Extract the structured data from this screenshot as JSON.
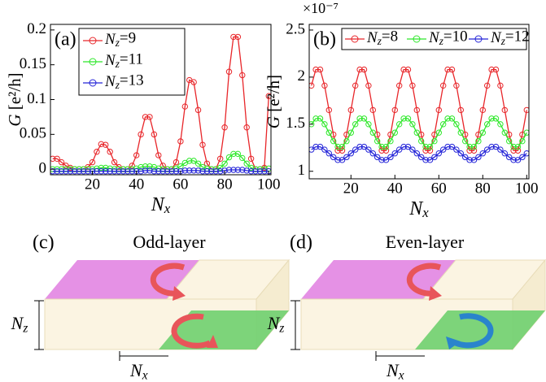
{
  "chart_data": [
    {
      "type": "line",
      "panel": "(a)",
      "y_label": "G [e²/h]",
      "x_label": "Nx",
      "legend": "upper left",
      "x": [
        2,
        4,
        6,
        8,
        10,
        12,
        14,
        16,
        18,
        20,
        22,
        24,
        26,
        28,
        30,
        32,
        34,
        36,
        38,
        40,
        42,
        44,
        46,
        48,
        50,
        52,
        54,
        56,
        58,
        60,
        62,
        64,
        66,
        68,
        70,
        72,
        74,
        76,
        78,
        80,
        82,
        84,
        86,
        88,
        90,
        92,
        94,
        96,
        98,
        100
      ],
      "series": [
        {
          "name": "Nz=9",
          "color": "#e8262a",
          "values": [
            0.015,
            0.015,
            0.01,
            0.005,
            0.002,
            0,
            0,
            0,
            0.003,
            0.01,
            0.025,
            0.036,
            0.035,
            0.025,
            0.01,
            0.003,
            0,
            0,
            0.005,
            0.02,
            0.05,
            0.075,
            0.075,
            0.05,
            0.02,
            0.005,
            0,
            0,
            0.01,
            0.04,
            0.09,
            0.128,
            0.125,
            0.085,
            0.035,
            0.008,
            0,
            0,
            0.015,
            0.06,
            0.14,
            0.19,
            0.19,
            0.135,
            0.06,
            0.015,
            0,
            0,
            0.002,
            0.105
          ]
        },
        {
          "name": "Nz=11",
          "color": "#2ee82a",
          "values": [
            0,
            0,
            0,
            0,
            0,
            0,
            0,
            0,
            0,
            0,
            0.001,
            0.002,
            0.002,
            0.001,
            0,
            0,
            0,
            0,
            0,
            0.001,
            0.003,
            0.004,
            0.004,
            0.003,
            0.001,
            0,
            0,
            0,
            0.001,
            0.004,
            0.009,
            0.012,
            0.012,
            0.008,
            0.003,
            0.001,
            0,
            0,
            0.002,
            0.008,
            0.017,
            0.022,
            0.022,
            0.016,
            0.008,
            0.002,
            0,
            0,
            0,
            0.001
          ]
        },
        {
          "name": "Nz=13",
          "color": "#2424d8",
          "values": [
            -0.003,
            -0.003,
            -0.003,
            -0.003,
            -0.003,
            -0.003,
            -0.003,
            -0.003,
            -0.003,
            -0.003,
            -0.003,
            -0.003,
            -0.003,
            -0.003,
            -0.003,
            -0.003,
            -0.003,
            -0.003,
            -0.003,
            -0.003,
            -0.003,
            -0.002,
            -0.002,
            -0.003,
            -0.003,
            -0.003,
            -0.003,
            -0.003,
            -0.003,
            -0.003,
            -0.002,
            -0.002,
            -0.002,
            -0.002,
            -0.003,
            -0.003,
            -0.003,
            -0.003,
            -0.003,
            -0.002,
            -0.001,
            -0.001,
            -0.001,
            -0.001,
            -0.002,
            -0.003,
            -0.003,
            -0.003,
            -0.003,
            -0.003
          ]
        }
      ],
      "xlim": [
        1,
        101
      ],
      "ylim": [
        -0.008,
        0.208
      ],
      "xticks": [
        20,
        40,
        60,
        80,
        100
      ],
      "yticks": [
        0,
        0.05,
        0.1,
        0.15,
        0.2
      ],
      "grid": false
    },
    {
      "type": "line",
      "panel": "(b)",
      "y_label": "G [e²/h]",
      "x_label": "Nx",
      "scale_label": "×10⁻⁷",
      "legend": "top",
      "x": [
        2,
        4,
        6,
        8,
        10,
        12,
        14,
        16,
        18,
        20,
        22,
        24,
        26,
        28,
        30,
        32,
        34,
        36,
        38,
        40,
        42,
        44,
        46,
        48,
        50,
        52,
        54,
        56,
        58,
        60,
        62,
        64,
        66,
        68,
        70,
        72,
        74,
        76,
        78,
        80,
        82,
        84,
        86,
        88,
        90,
        92,
        94,
        96,
        98,
        100
      ],
      "series": [
        {
          "name": "Nz=8",
          "color": "#e8262a",
          "values": [
            1.91,
            2.08,
            2.08,
            1.91,
            1.65,
            1.39,
            1.22,
            1.22,
            1.39,
            1.65,
            1.91,
            2.08,
            2.08,
            1.91,
            1.65,
            1.39,
            1.22,
            1.22,
            1.39,
            1.65,
            1.91,
            2.08,
            2.08,
            1.91,
            1.65,
            1.39,
            1.22,
            1.22,
            1.39,
            1.65,
            1.91,
            2.08,
            2.08,
            1.91,
            1.65,
            1.39,
            1.22,
            1.22,
            1.39,
            1.65,
            1.91,
            2.08,
            2.08,
            1.91,
            1.65,
            1.39,
            1.22,
            1.22,
            1.39,
            1.65
          ]
        },
        {
          "name": "Nz=10",
          "color": "#2ee82a",
          "values": [
            1.5,
            1.56,
            1.56,
            1.5,
            1.41,
            1.32,
            1.26,
            1.26,
            1.32,
            1.41,
            1.5,
            1.56,
            1.56,
            1.5,
            1.41,
            1.32,
            1.26,
            1.26,
            1.32,
            1.41,
            1.5,
            1.56,
            1.56,
            1.5,
            1.41,
            1.32,
            1.26,
            1.26,
            1.32,
            1.41,
            1.5,
            1.56,
            1.56,
            1.5,
            1.41,
            1.32,
            1.26,
            1.26,
            1.32,
            1.41,
            1.5,
            1.56,
            1.56,
            1.5,
            1.41,
            1.32,
            1.26,
            1.26,
            1.32,
            1.41
          ]
        },
        {
          "name": "Nz=12",
          "color": "#2424d8",
          "values": [
            1.23,
            1.26,
            1.26,
            1.23,
            1.19,
            1.15,
            1.12,
            1.12,
            1.15,
            1.19,
            1.23,
            1.26,
            1.26,
            1.23,
            1.19,
            1.15,
            1.12,
            1.12,
            1.15,
            1.19,
            1.23,
            1.26,
            1.26,
            1.23,
            1.19,
            1.15,
            1.12,
            1.12,
            1.15,
            1.19,
            1.23,
            1.26,
            1.26,
            1.23,
            1.19,
            1.15,
            1.12,
            1.12,
            1.15,
            1.19,
            1.23,
            1.26,
            1.26,
            1.23,
            1.19,
            1.15,
            1.12,
            1.12,
            1.15,
            1.19
          ]
        }
      ],
      "xlim": [
        1,
        101
      ],
      "ylim": [
        0.92,
        2.56
      ],
      "xticks": [
        20,
        40,
        60,
        80,
        100
      ],
      "yticks": [
        1,
        1.5,
        2,
        2.5
      ],
      "grid": false
    }
  ],
  "diagrams": [
    {
      "panel": "(c)",
      "title": "Odd-layer",
      "z_label": "Nz",
      "x_label": "Nx"
    },
    {
      "panel": "(d)",
      "title": "Even-layer",
      "z_label": "Nz",
      "x_label": "Nx"
    }
  ]
}
